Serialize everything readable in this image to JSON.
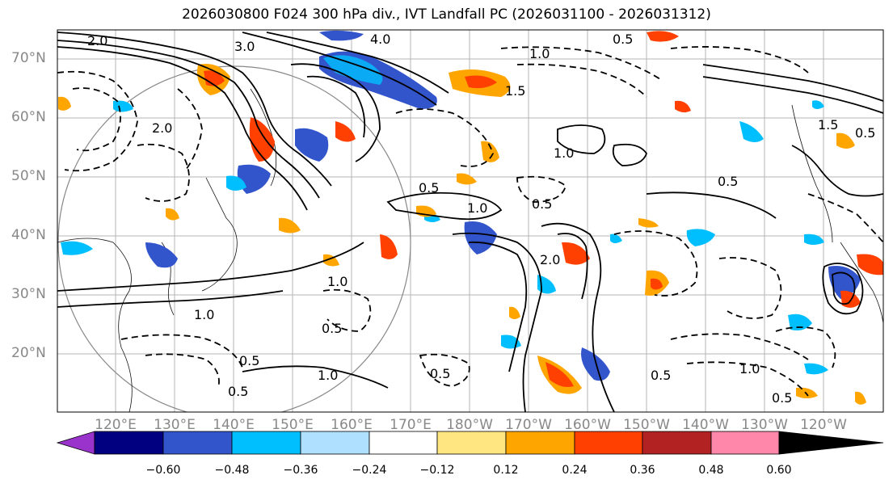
{
  "title": "2026030800 F024 300 hPa div., IVT Landfall PC (2026031100 - 2026031312)",
  "lat_labels": [
    "70°N",
    "60°N",
    "50°N",
    "40°N",
    "30°N",
    "20°N"
  ],
  "lon_labels": [
    "120°E",
    "130°E",
    "140°E",
    "150°E",
    "160°E",
    "170°E",
    "180°W",
    "170°W",
    "160°W",
    "150°W",
    "140°W",
    "130°W",
    "120°W"
  ],
  "colorbar": {
    "ticks": [
      "−0.60",
      "−0.48",
      "−0.36",
      "−0.24",
      "−0.12",
      "0.12",
      "0.24",
      "0.36",
      "0.48",
      "0.60"
    ],
    "colors": [
      "#9933cc",
      "#000080",
      "#3355cc",
      "#00bfff",
      "#b0e0ff",
      "#ffffff",
      "#ffe680",
      "#ffa500",
      "#ff4000",
      "#b22222",
      "#ff88aa"
    ]
  },
  "contour_labels": [
    "4.0",
    "0.5",
    "3.0",
    "2.0",
    "1.0",
    "1.5",
    "0.5",
    "1.0",
    "2.0",
    "0.5",
    "1.0",
    "0.5",
    "1.5",
    "2.0",
    "0.5",
    "1.0",
    "0.5",
    "1.0",
    "0.5",
    "0.5",
    "1.0",
    "0.5",
    "1.0",
    "0.5",
    "0.5"
  ]
}
